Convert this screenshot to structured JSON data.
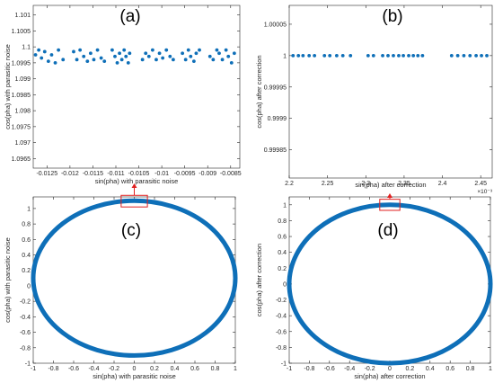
{
  "colors": {
    "series": "#0e6fb8",
    "axis": "#262626",
    "callout": "#e02020",
    "background": "#ffffff"
  },
  "chart_data": [
    {
      "type": "scatter",
      "panel_label": "(a)",
      "xlabel": "sin(pha) with parasitic noise",
      "ylabel": "cos(pha) with parasitic noise",
      "xlim": [
        -0.0128,
        -0.0083
      ],
      "ylim": [
        1.0962,
        1.1013
      ],
      "xticks": [
        -0.0125,
        -0.012,
        -0.0115,
        -0.011,
        -0.0105,
        -0.01,
        -0.0095,
        -0.009,
        -0.0085
      ],
      "xtick_labels": [
        "-0.0125",
        "-0.012",
        "-0.0115",
        "-0.011",
        "-0.0105",
        "-0.01",
        "-0.0095",
        "-0.009",
        "-0.0085"
      ],
      "yticks": [
        1.0965,
        1.097,
        1.0975,
        1.098,
        1.0985,
        1.099,
        1.0995,
        1.1,
        1.1005,
        1.101
      ],
      "ytick_labels": [
        "1.0965",
        "1.097",
        "1.0975",
        "1.098",
        "1.0985",
        "1.099",
        "1.0995",
        "1.1",
        "1.1005",
        "1.101"
      ],
      "points": [
        [
          -0.01275,
          1.09975
        ],
        [
          -0.01268,
          1.0999
        ],
        [
          -0.01262,
          1.09965
        ],
        [
          -0.01255,
          1.09985
        ],
        [
          -0.01247,
          1.09955
        ],
        [
          -0.0124,
          1.09975
        ],
        [
          -0.01232,
          1.0995
        ],
        [
          -0.01225,
          1.0999
        ],
        [
          -0.01215,
          1.0996
        ],
        [
          -0.01192,
          1.09985
        ],
        [
          -0.01185,
          1.0996
        ],
        [
          -0.01178,
          1.0999
        ],
        [
          -0.0117,
          1.0997
        ],
        [
          -0.01162,
          1.09955
        ],
        [
          -0.01155,
          1.0998
        ],
        [
          -0.01148,
          1.0996
        ],
        [
          -0.0114,
          1.0999
        ],
        [
          -0.01132,
          1.09965
        ],
        [
          -0.01125,
          1.09955
        ],
        [
          -0.01108,
          1.0999
        ],
        [
          -0.01102,
          1.0997
        ],
        [
          -0.01097,
          1.0995
        ],
        [
          -0.01092,
          1.0998
        ],
        [
          -0.01087,
          1.0996
        ],
        [
          -0.01082,
          1.0999
        ],
        [
          -0.01078,
          1.0997
        ],
        [
          -0.01073,
          1.0995
        ],
        [
          -0.0107,
          1.0998
        ],
        [
          -0.01042,
          1.0996
        ],
        [
          -0.01035,
          1.0998
        ],
        [
          -0.01028,
          1.0997
        ],
        [
          -0.0102,
          1.0999
        ],
        [
          -0.01012,
          1.0996
        ],
        [
          -0.01005,
          1.0998
        ],
        [
          -0.00998,
          1.09965
        ],
        [
          -0.0099,
          1.0999
        ],
        [
          -0.00982,
          1.0997
        ],
        [
          -0.00975,
          1.0996
        ],
        [
          -0.00955,
          1.0998
        ],
        [
          -0.00948,
          1.0996
        ],
        [
          -0.00942,
          1.0999
        ],
        [
          -0.00937,
          1.0997
        ],
        [
          -0.0093,
          1.09955
        ],
        [
          -0.00925,
          1.0998
        ],
        [
          -0.00918,
          1.0999
        ],
        [
          -0.00895,
          1.0997
        ],
        [
          -0.00888,
          1.0996
        ],
        [
          -0.0088,
          1.0999
        ],
        [
          -0.00875,
          1.0998
        ],
        [
          -0.00868,
          1.0996
        ],
        [
          -0.0086,
          1.0999
        ],
        [
          -0.00855,
          1.0997
        ],
        [
          -0.00848,
          1.0995
        ],
        [
          -0.00842,
          1.0998
        ]
      ]
    },
    {
      "type": "scatter",
      "panel_label": "(b)",
      "xlabel": "sin(pha) after correction",
      "ylabel": "cos(pha) after correction",
      "xlim": [
        2.2,
        2.465
      ],
      "ylim": [
        0.999805,
        1.00008
      ],
      "x_multiplier": "×10⁻³",
      "xticks": [
        2.2,
        2.25,
        2.3,
        2.35,
        2.4,
        2.45
      ],
      "xtick_labels": [
        "2.2",
        "2.25",
        "2.3",
        "2.35",
        "2.4",
        "2.45"
      ],
      "yticks": [
        0.99985,
        0.9999,
        0.99995,
        1,
        1.00005
      ],
      "ytick_labels": [
        "0.99985",
        "0.9999",
        "0.99995",
        "1",
        "1.00005"
      ],
      "points": [
        [
          2.205,
          1
        ],
        [
          2.212,
          1
        ],
        [
          2.218,
          1
        ],
        [
          2.226,
          1
        ],
        [
          2.233,
          1
        ],
        [
          2.246,
          1
        ],
        [
          2.253,
          1
        ],
        [
          2.262,
          1
        ],
        [
          2.27,
          1
        ],
        [
          2.28,
          1
        ],
        [
          2.303,
          1
        ],
        [
          2.31,
          1
        ],
        [
          2.322,
          1
        ],
        [
          2.329,
          1
        ],
        [
          2.336,
          1
        ],
        [
          2.343,
          1
        ],
        [
          2.349,
          1
        ],
        [
          2.356,
          1
        ],
        [
          2.362,
          1
        ],
        [
          2.368,
          1
        ],
        [
          2.374,
          1
        ],
        [
          2.412,
          1
        ],
        [
          2.42,
          1
        ],
        [
          2.428,
          1
        ],
        [
          2.436,
          1
        ],
        [
          2.444,
          1
        ],
        [
          2.451,
          1
        ],
        [
          2.458,
          1
        ]
      ]
    },
    {
      "type": "line",
      "panel_label": "(c)",
      "xlabel": "sin(pha) with parasitic noise",
      "ylabel": "cos(pha) with parasitic noise",
      "xlim": [
        -1,
        1
      ],
      "ylim": [
        -1,
        1.15
      ],
      "xticks": [
        -1,
        -0.8,
        -0.6,
        -0.4,
        -0.2,
        0,
        0.2,
        0.4,
        0.6,
        0.8,
        1
      ],
      "xtick_labels": [
        "-1",
        "-0.8",
        "-0.6",
        "-0.4",
        "-0.2",
        "0",
        "0.2",
        "0.4",
        "0.6",
        "0.8",
        "1"
      ],
      "yticks": [
        -1,
        -0.8,
        -0.6,
        -0.4,
        -0.2,
        0,
        0.2,
        0.4,
        0.6,
        0.8,
        1
      ],
      "ytick_labels": [
        "-1",
        "-0.8",
        "-0.6",
        "-0.4",
        "-0.2",
        "0",
        "0.2",
        "0.4",
        "0.6",
        "0.8",
        "1"
      ],
      "curve": {
        "shape": "ellipse",
        "center": [
          0,
          0.1
        ],
        "radius_x": 1,
        "radius_y": 1
      },
      "callout_box": {
        "x": [
          -0.13,
          0.13
        ],
        "y": [
          1.02,
          1.17
        ]
      }
    },
    {
      "type": "line",
      "panel_label": "(d)",
      "xlabel": "sin(pha) after correction",
      "ylabel": "cos(pha) after correction",
      "xlim": [
        -1,
        1
      ],
      "ylim": [
        -1,
        1.1
      ],
      "xticks": [
        -1,
        -0.8,
        -0.6,
        -0.4,
        -0.2,
        0,
        0.2,
        0.4,
        0.6,
        0.8,
        1
      ],
      "xtick_labels": [
        "-1",
        "-0.8",
        "-0.6",
        "-0.4",
        "-0.2",
        "0",
        "0.2",
        "0.4",
        "0.6",
        "0.8",
        "1"
      ],
      "yticks": [
        -1,
        -0.8,
        -0.6,
        -0.4,
        -0.2,
        0,
        0.2,
        0.4,
        0.6,
        0.8,
        1
      ],
      "ytick_labels": [
        "-1",
        "-0.8",
        "-0.6",
        "-0.4",
        "-0.2",
        "0",
        "0.2",
        "0.4",
        "0.6",
        "0.8",
        "1"
      ],
      "curve": {
        "shape": "circle",
        "center": [
          0,
          0
        ],
        "radius_x": 1,
        "radius_y": 1
      },
      "callout_box": {
        "x": [
          -0.1,
          0.1
        ],
        "y": [
          0.93,
          1.07
        ]
      }
    }
  ]
}
